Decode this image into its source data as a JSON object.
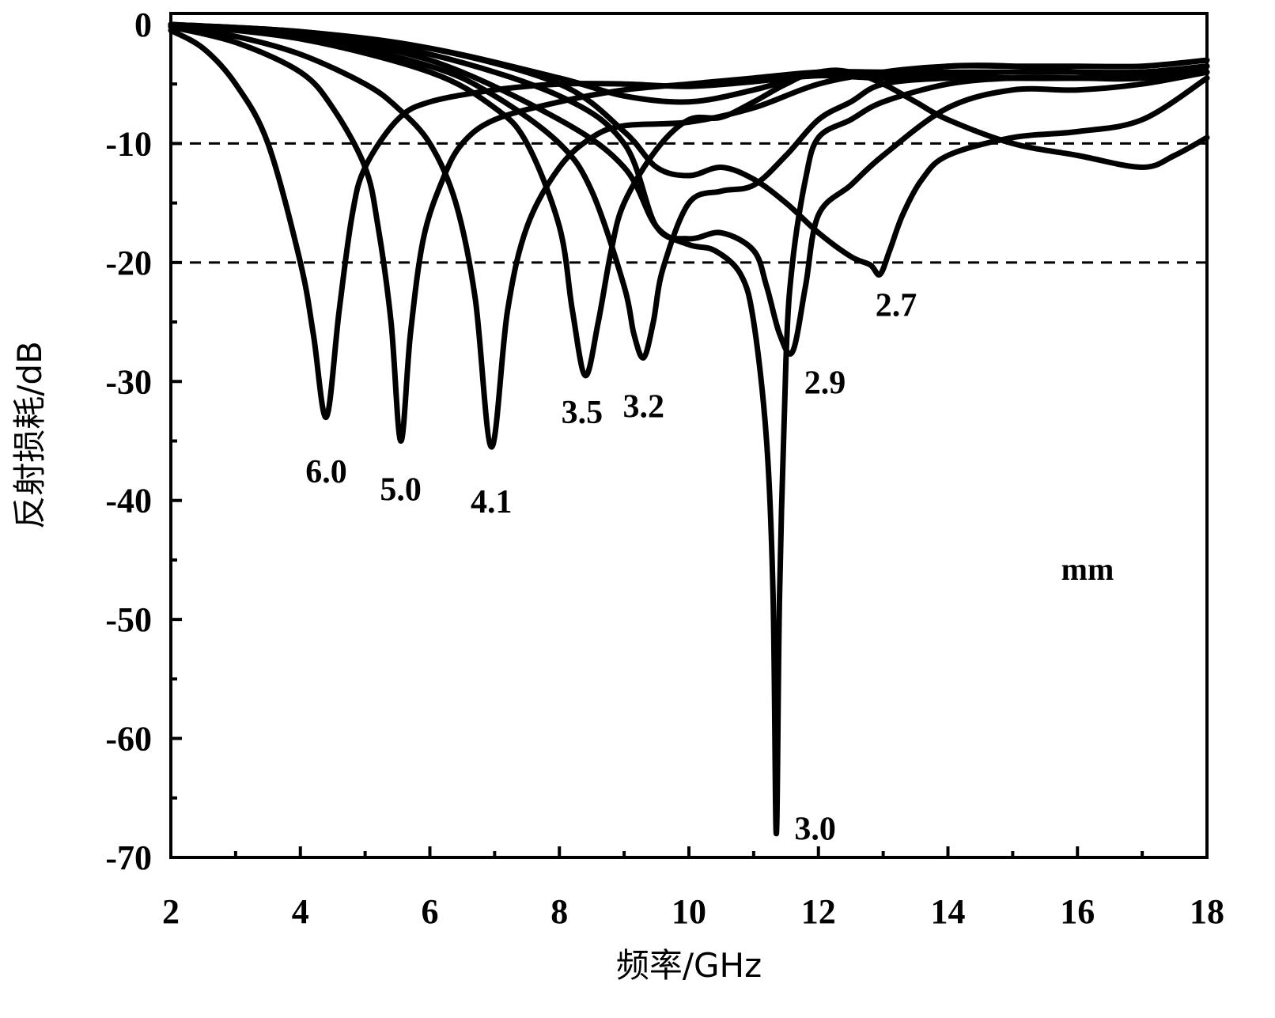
{
  "chart_data": {
    "type": "line",
    "xlabel": "频率/GHz",
    "ylabel": "反射损耗/dB",
    "xlim": [
      2,
      18
    ],
    "ylim": [
      -70,
      0
    ],
    "xticks": [
      2,
      4,
      6,
      8,
      10,
      12,
      14,
      16,
      18
    ],
    "yticks": [
      0,
      -10,
      -20,
      -30,
      -40,
      -50,
      -60,
      -70
    ],
    "reference_lines": [
      -10,
      -20
    ],
    "unit_note": "mm",
    "series": [
      {
        "name": "6.0",
        "x": [
          2,
          2.5,
          3,
          3.5,
          4,
          4.2,
          4.4,
          4.6,
          4.8,
          5,
          5.5,
          6,
          7,
          8,
          9,
          10,
          11,
          12,
          13,
          14,
          15,
          16,
          17,
          18
        ],
        "y": [
          -0.5,
          -2,
          -5,
          -10,
          -20,
          -26,
          -33,
          -24,
          -16,
          -12,
          -8,
          -6.5,
          -5.5,
          -5,
          -5,
          -5.2,
          -4.8,
          -4.3,
          -4.5,
          -4.3,
          -4.5,
          -4.5,
          -4.3,
          -4
        ]
      },
      {
        "name": "5.0",
        "x": [
          2,
          3,
          4,
          4.5,
          5,
          5.2,
          5.4,
          5.55,
          5.7,
          5.9,
          6.2,
          6.5,
          7,
          8,
          9,
          10,
          11,
          12,
          13,
          14,
          15,
          16,
          17,
          18
        ],
        "y": [
          -0.2,
          -1.5,
          -4,
          -7,
          -12,
          -17,
          -25,
          -35,
          -26,
          -18,
          -13,
          -10,
          -8,
          -6.5,
          -5.5,
          -5,
          -4.5,
          -4,
          -4,
          -4,
          -4,
          -4,
          -4,
          -3.5
        ]
      },
      {
        "name": "4.1",
        "x": [
          2,
          3,
          4,
          5,
          5.5,
          6,
          6.4,
          6.7,
          6.95,
          7.2,
          7.5,
          8,
          8.5,
          9,
          10,
          11,
          12,
          13,
          14,
          15,
          16,
          17,
          18
        ],
        "y": [
          -0.1,
          -1,
          -2.5,
          -5,
          -7,
          -10,
          -15,
          -23,
          -35.5,
          -24,
          -17,
          -12,
          -9.5,
          -8.5,
          -8.2,
          -7,
          -5,
          -4,
          -3.5,
          -3.5,
          -3.5,
          -3.5,
          -3
        ]
      },
      {
        "name": "3.5",
        "x": [
          2,
          4,
          6,
          7,
          7.5,
          8,
          8.2,
          8.4,
          8.6,
          8.8,
          9,
          9.5,
          10,
          10.5,
          11,
          11.5,
          12,
          13,
          14,
          15,
          16,
          17,
          18
        ],
        "y": [
          0,
          -1.2,
          -4,
          -7,
          -10,
          -17,
          -24,
          -29.5,
          -25,
          -19,
          -15,
          -10.5,
          -8,
          -7.8,
          -6.5,
          -5,
          -4,
          -4.2,
          -3.5,
          -3.5,
          -4,
          -4,
          -3.5
        ]
      },
      {
        "name": "3.2",
        "x": [
          2,
          4,
          6,
          7,
          8,
          8.5,
          9,
          9.15,
          9.3,
          9.45,
          9.6,
          10,
          10.5,
          11,
          11.5,
          12,
          12.5,
          13,
          14,
          15,
          16,
          17,
          18
        ],
        "y": [
          0,
          -1,
          -3.5,
          -6,
          -10,
          -14,
          -22,
          -26,
          -28,
          -25,
          -20.5,
          -15,
          -14,
          -13.5,
          -11,
          -8,
          -6.5,
          -5,
          -4.5,
          -4.5,
          -4.5,
          -4.5,
          -4
        ]
      },
      {
        "name": "3.0",
        "x": [
          2,
          4,
          6,
          8,
          9,
          9.5,
          10,
          10.4,
          10.8,
          11,
          11.2,
          11.3,
          11.35,
          11.4,
          11.5,
          11.6,
          11.8,
          12,
          12.5,
          13,
          14,
          15,
          16,
          17,
          18
        ],
        "y": [
          0,
          -1,
          -3,
          -8,
          -12,
          -17,
          -18.5,
          -19,
          -21,
          -25,
          -35,
          -48,
          -68,
          -48,
          -28,
          -20,
          -13,
          -9.5,
          -8,
          -6.5,
          -5,
          -4.5,
          -4.5,
          -4.5,
          -3.5
        ]
      },
      {
        "name": "2.9",
        "x": [
          2,
          4,
          6,
          8,
          9,
          9.5,
          10,
          10.5,
          11,
          11.2,
          11.4,
          11.6,
          11.8,
          12,
          12.5,
          13,
          14,
          15,
          16,
          17,
          18
        ],
        "y": [
          0,
          -0.8,
          -2.5,
          -6,
          -10,
          -17,
          -18,
          -17.5,
          -19,
          -22,
          -26,
          -27.5,
          -22,
          -16,
          -13.5,
          -11,
          -7,
          -5.5,
          -5.5,
          -5,
          -4
        ]
      },
      {
        "name": "2.7",
        "x": [
          2,
          4,
          6,
          8,
          9,
          9.5,
          10,
          10.5,
          11,
          11.5,
          12,
          12.5,
          12.8,
          12.95,
          13.1,
          13.3,
          13.6,
          14,
          15,
          16,
          17,
          18
        ],
        "y": [
          0,
          -0.6,
          -2,
          -5,
          -9,
          -12,
          -12.7,
          -12,
          -13,
          -15,
          -17.5,
          -19.5,
          -20.2,
          -21,
          -19,
          -16,
          -13,
          -11,
          -9.5,
          -9,
          -8,
          -4.5
        ]
      },
      {
        "name": "",
        "x": [
          2,
          4,
          6,
          8,
          9,
          10,
          11,
          12,
          12.5,
          13,
          13.5,
          14,
          15,
          16,
          17,
          17.5,
          18
        ],
        "y": [
          0,
          -0.6,
          -2,
          -4.5,
          -6,
          -6.5,
          -5.5,
          -4,
          -4,
          -5,
          -6.5,
          -8,
          -10,
          -11,
          -12,
          -11,
          -9.5
        ]
      }
    ],
    "annotations": [
      {
        "text": "6.0",
        "x": 4.4,
        "y": -38.5
      },
      {
        "text": "5.0",
        "x": 5.55,
        "y": -40
      },
      {
        "text": "4.1",
        "x": 6.95,
        "y": -41
      },
      {
        "text": "3.5",
        "x": 8.35,
        "y": -33.5
      },
      {
        "text": "3.2",
        "x": 9.3,
        "y": -33
      },
      {
        "text": "2.9",
        "x": 12.1,
        "y": -31
      },
      {
        "text": "2.7",
        "x": 13.2,
        "y": -24.5
      },
      {
        "text": "3.0",
        "x": 11.95,
        "y": -68.5
      }
    ]
  }
}
